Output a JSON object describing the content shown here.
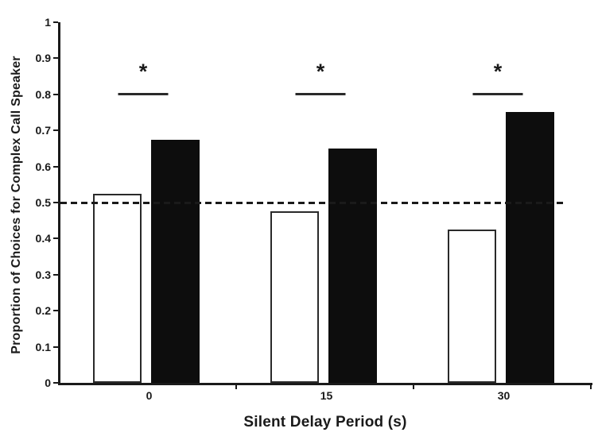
{
  "colors": {
    "ink": "#1a1a1a",
    "open_bar_fill": "#ffffff",
    "filled_bar_fill": "#0d0d0d",
    "background": "#ffffff"
  },
  "chart_data": {
    "type": "bar",
    "title": "",
    "xlabel": "Silent Delay Period (s)",
    "ylabel": "Proportion of Choices for Complex Call Speaker",
    "categories": [
      "0",
      "15",
      "30"
    ],
    "series": [
      {
        "name": "open-bars",
        "fill": "#ffffff",
        "values": [
          0.525,
          0.475,
          0.425
        ]
      },
      {
        "name": "filled-bars",
        "fill": "#0d0d0d",
        "values": [
          0.675,
          0.65,
          0.75
        ]
      }
    ],
    "ylim": [
      0,
      1
    ],
    "y_tick_labels": [
      "0",
      "0.1",
      "0.2",
      "0.3",
      "0.4",
      "0.5",
      "0.6",
      "0.7",
      "0.8",
      "0.9",
      "1"
    ],
    "grid": false,
    "legend_position": "none",
    "reference_line": {
      "value": 0.5,
      "style": "dashed"
    },
    "significance_markers": [
      {
        "category": "0",
        "symbol": "*",
        "line_value": 0.8
      },
      {
        "category": "15",
        "symbol": "*",
        "line_value": 0.8
      },
      {
        "category": "30",
        "symbol": "*",
        "line_value": 0.8
      }
    ]
  }
}
